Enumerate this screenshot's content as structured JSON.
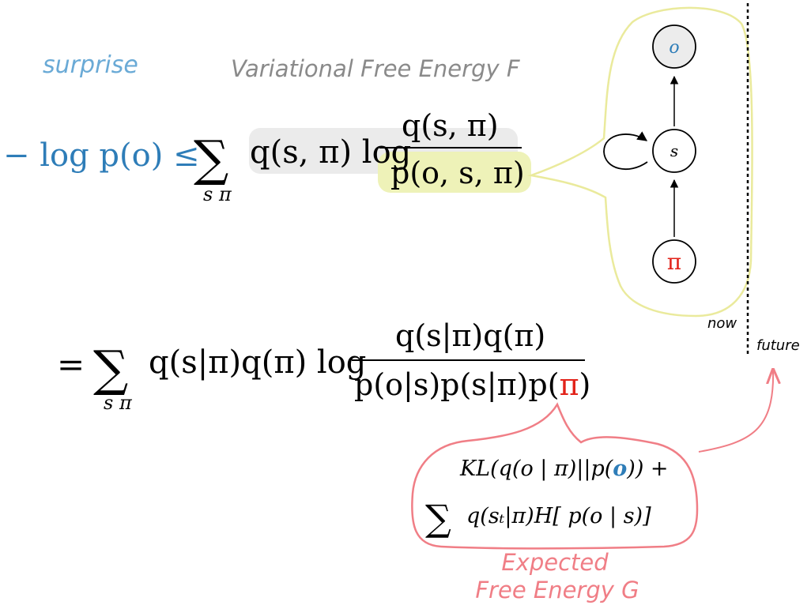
{
  "labels": {
    "surprise": "surprise",
    "vfe": "Variational Free Energy F",
    "now": "now",
    "future": "future",
    "efe_line1": "Expected",
    "efe_line2": "Free Energy G"
  },
  "equation1": {
    "lhs": "− log p(o) ≤",
    "sum": "∑",
    "sum_sub": "s π",
    "term": "q(s, π) log",
    "numerator": "q(s, π)",
    "denominator": "p(o, s, π)"
  },
  "equation2": {
    "eq": "=",
    "sum": "∑",
    "sum_sub": "s π",
    "term": "q(s|π)q(π) log",
    "numerator": "q(s|π)q(π)",
    "den_before": "p(o|s)p(s|π)p(",
    "den_pi": "π",
    "den_after": ")"
  },
  "expected_free_energy": {
    "line1_before": "KL(q(o | π)||p(",
    "line1_o": "o",
    "line1_after": "))  +",
    "line2_sum": "∑",
    "line2_term": "q(sₜ|π)H[ p(o | s)]"
  },
  "graph": {
    "node_o": "o",
    "node_s": "s",
    "node_pi": "π"
  },
  "colors": {
    "blue": "#2e7db8",
    "light_blue": "#6aaad6",
    "gray": "#8a8a8a",
    "red": "#e2231a",
    "pink": "#f07e86",
    "highlight": "#eef2b8",
    "gray_highlight": "#ebebeb",
    "yellow_outline": "#eaea9c"
  }
}
